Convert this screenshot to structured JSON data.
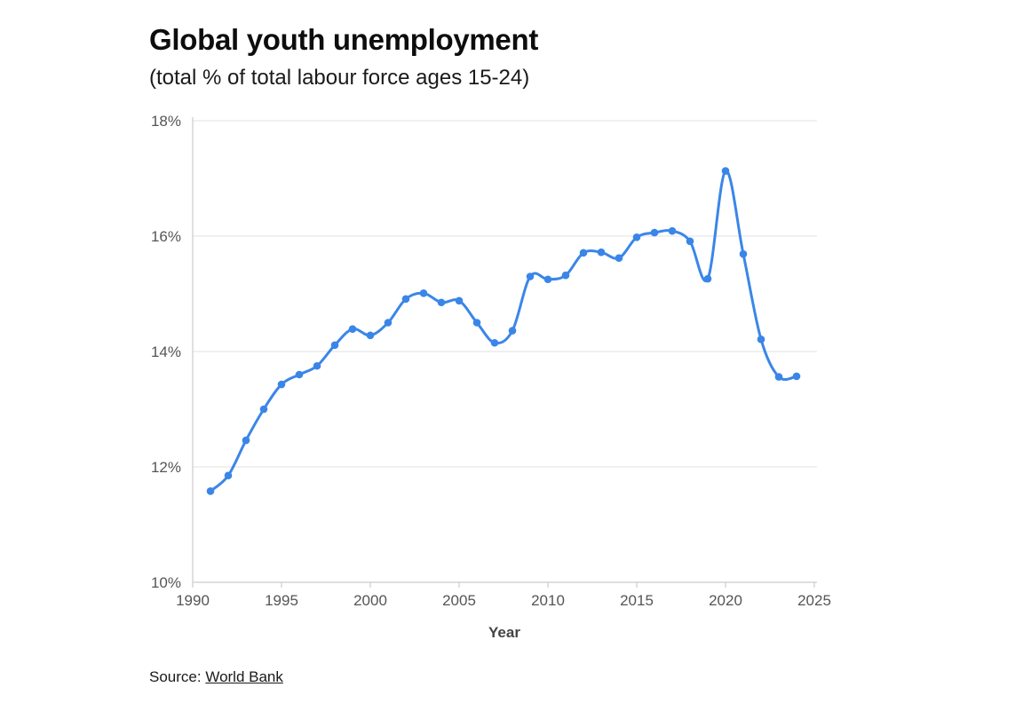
{
  "header": {
    "title": "Global youth unemployment",
    "subtitle": "(total % of total labour force ages 15-24)"
  },
  "source": {
    "prefix": "Source:",
    "link_text": "World Bank"
  },
  "colors": {
    "line": "#3a86e8",
    "grid": "#e6e6e6",
    "axis": "#cccccc"
  },
  "chart_data": {
    "type": "line",
    "title": "Global youth unemployment",
    "subtitle": "(total % of total labour force ages 15-24)",
    "xlabel": "Year",
    "ylabel": "",
    "xlim": [
      1990,
      2025
    ],
    "ylim": [
      10,
      18
    ],
    "x_ticks": [
      "1990",
      "1995",
      "2000",
      "2005",
      "2010",
      "2015",
      "2020",
      "2025"
    ],
    "y_ticks": [
      "10%",
      "12%",
      "14%",
      "16%",
      "18%"
    ],
    "grid": "horizontal",
    "series": [
      {
        "color": "#3a86e8",
        "x": [
          1991,
          1992,
          1993,
          1994,
          1995,
          1996,
          1997,
          1998,
          1999,
          2000,
          2001,
          2002,
          2003,
          2004,
          2005,
          2006,
          2007,
          2008,
          2009,
          2010,
          2011,
          2012,
          2013,
          2014,
          2015,
          2016,
          2017,
          2018,
          2019,
          2020,
          2021,
          2022,
          2023,
          2024
        ],
        "values": [
          11.58,
          11.85,
          12.46,
          13.0,
          13.43,
          13.6,
          13.75,
          14.11,
          14.39,
          14.28,
          14.5,
          14.91,
          15.01,
          14.85,
          14.88,
          14.5,
          14.15,
          14.36,
          15.3,
          15.25,
          15.32,
          15.71,
          15.72,
          15.62,
          15.98,
          16.06,
          16.09,
          15.91,
          15.26,
          17.13,
          15.69,
          14.21,
          13.56,
          13.57
        ]
      }
    ]
  }
}
